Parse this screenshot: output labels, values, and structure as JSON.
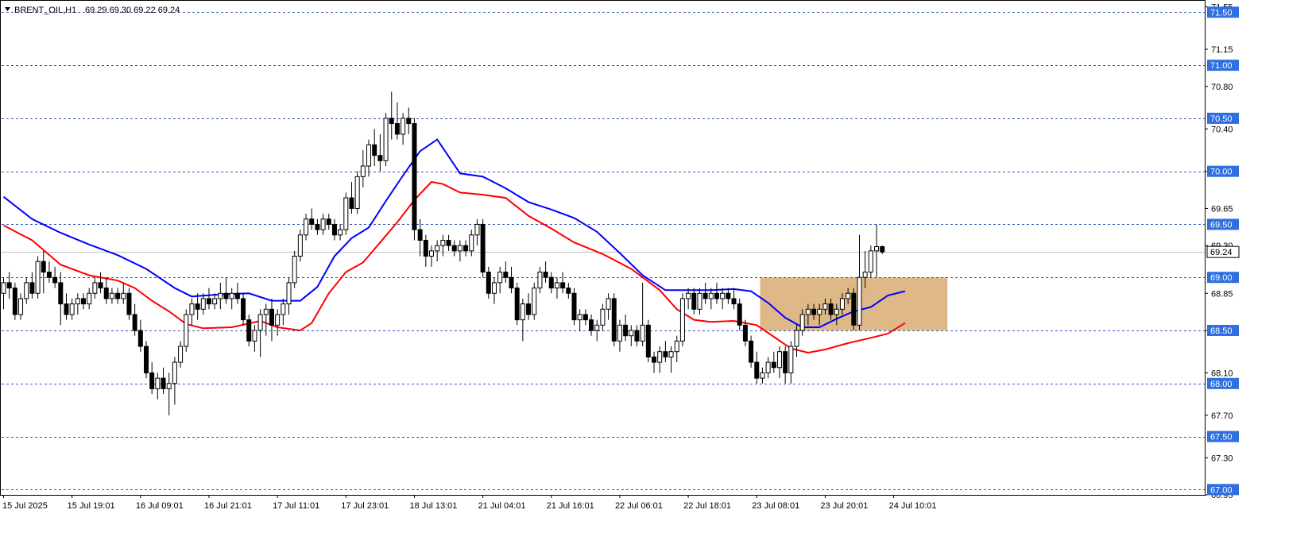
{
  "header": {
    "symbol_label": "BRENT_OIL,H1",
    "ohlc_label": "69.29 69.30 69.22 69.24"
  },
  "chart_data": {
    "type": "candlestick",
    "symbol": "BRENT_OIL",
    "timeframe": "H1",
    "ylim": [
      66.95,
      71.6
    ],
    "y_ticks": [
      "71.55",
      "71.15",
      "70.80",
      "70.40",
      "70.00",
      "69.65",
      "69.30",
      "68.85",
      "68.50",
      "68.10",
      "67.70",
      "67.30",
      "66.95"
    ],
    "x_ticks": [
      "15 Jul 2025",
      "15 Jul 19:01",
      "16 Jul 09:01",
      "16 Jul 21:01",
      "17 Jul 11:01",
      "17 Jul 23:01",
      "18 Jul 13:01",
      "21 Jul 04:01",
      "21 Jul 16:01",
      "22 Jul 06:01",
      "22 Jul 18:01",
      "23 Jul 08:01",
      "23 Jul 20:01",
      "24 Jul 10:01"
    ],
    "x_tick_bar_index": [
      0,
      12,
      24,
      36,
      48,
      60,
      72,
      84,
      96,
      108,
      120,
      132,
      144,
      156
    ],
    "level_lines": [
      {
        "price": 71.5,
        "label": "71.50"
      },
      {
        "price": 71.0,
        "label": "71.00"
      },
      {
        "price": 70.5,
        "label": "70.50"
      },
      {
        "price": 70.0,
        "label": "70.00"
      },
      {
        "price": 69.5,
        "label": "69.50"
      },
      {
        "price": 69.0,
        "label": "69.00"
      },
      {
        "price": 68.5,
        "label": "68.50"
      },
      {
        "price": 68.0,
        "label": "68.00"
      },
      {
        "price": 67.5,
        "label": "67.50"
      },
      {
        "price": 67.0,
        "label": "67.00"
      }
    ],
    "current_price": {
      "price": 69.24,
      "label": "69.24"
    },
    "zone": {
      "from_bar": 133,
      "to_bar": 165,
      "low": 68.5,
      "high": 69.0,
      "color": "#deb887"
    },
    "ma_fast_color": "#ff0000",
    "ma_slow_color": "#0000ff",
    "ma_fast": [
      [
        0,
        69.49
      ],
      [
        5,
        69.35
      ],
      [
        10,
        69.12
      ],
      [
        15,
        69.02
      ],
      [
        20,
        68.97
      ],
      [
        23,
        68.9
      ],
      [
        26,
        68.78
      ],
      [
        29,
        68.68
      ],
      [
        32,
        68.56
      ],
      [
        35,
        68.52
      ],
      [
        40,
        68.53
      ],
      [
        45,
        68.59
      ],
      [
        48,
        68.53
      ],
      [
        52,
        68.5
      ],
      [
        54,
        68.57
      ],
      [
        57,
        68.85
      ],
      [
        60,
        69.05
      ],
      [
        63,
        69.14
      ],
      [
        66,
        69.33
      ],
      [
        69,
        69.52
      ],
      [
        72,
        69.73
      ],
      [
        75,
        69.9
      ],
      [
        77,
        69.88
      ],
      [
        80,
        69.8
      ],
      [
        84,
        69.78
      ],
      [
        88,
        69.75
      ],
      [
        92,
        69.58
      ],
      [
        96,
        69.46
      ],
      [
        100,
        69.33
      ],
      [
        105,
        69.22
      ],
      [
        110,
        69.08
      ],
      [
        115,
        68.88
      ],
      [
        118,
        68.7
      ],
      [
        121,
        68.6
      ],
      [
        124,
        68.58
      ],
      [
        128,
        68.59
      ],
      [
        132,
        68.55
      ],
      [
        135,
        68.44
      ],
      [
        138,
        68.33
      ],
      [
        141,
        68.29
      ],
      [
        144,
        68.32
      ],
      [
        148,
        68.38
      ],
      [
        152,
        68.43
      ],
      [
        155,
        68.47
      ],
      [
        158,
        68.57
      ]
    ],
    "ma_slow": [
      [
        0,
        69.76
      ],
      [
        5,
        69.55
      ],
      [
        10,
        69.42
      ],
      [
        15,
        69.31
      ],
      [
        20,
        69.21
      ],
      [
        25,
        69.08
      ],
      [
        30,
        68.9
      ],
      [
        33,
        68.82
      ],
      [
        38,
        68.84
      ],
      [
        43,
        68.85
      ],
      [
        47,
        68.78
      ],
      [
        52,
        68.78
      ],
      [
        55,
        68.91
      ],
      [
        58,
        69.2
      ],
      [
        61,
        69.37
      ],
      [
        64,
        69.47
      ],
      [
        67,
        69.72
      ],
      [
        70,
        69.96
      ],
      [
        73,
        70.19
      ],
      [
        76,
        70.3
      ],
      [
        80,
        69.98
      ],
      [
        84,
        69.95
      ],
      [
        88,
        69.84
      ],
      [
        92,
        69.71
      ],
      [
        96,
        69.64
      ],
      [
        100,
        69.56
      ],
      [
        104,
        69.43
      ],
      [
        108,
        69.23
      ],
      [
        112,
        69.02
      ],
      [
        116,
        68.88
      ],
      [
        120,
        68.88
      ],
      [
        124,
        68.88
      ],
      [
        128,
        68.89
      ],
      [
        131,
        68.87
      ],
      [
        134,
        68.76
      ],
      [
        137,
        68.62
      ],
      [
        140,
        68.53
      ],
      [
        143,
        68.53
      ],
      [
        146,
        68.61
      ],
      [
        149,
        68.68
      ],
      [
        152,
        68.72
      ],
      [
        155,
        68.83
      ],
      [
        158,
        68.87
      ]
    ],
    "candles": [
      [
        68.85,
        69.0,
        68.7,
        68.95
      ],
      [
        68.95,
        69.05,
        68.8,
        68.9
      ],
      [
        68.9,
        68.95,
        68.6,
        68.65
      ],
      [
        68.65,
        68.85,
        68.6,
        68.8
      ],
      [
        68.8,
        69.0,
        68.75,
        68.95
      ],
      [
        68.95,
        69.05,
        68.8,
        68.85
      ],
      [
        68.85,
        69.2,
        68.8,
        69.15
      ],
      [
        69.15,
        69.25,
        68.85,
        69.05
      ],
      [
        69.05,
        69.15,
        68.95,
        69.0
      ],
      [
        69.0,
        69.1,
        68.9,
        68.95
      ],
      [
        68.95,
        69.05,
        68.55,
        68.75
      ],
      [
        68.75,
        68.85,
        68.6,
        68.65
      ],
      [
        68.65,
        68.8,
        68.6,
        68.75
      ],
      [
        68.75,
        68.85,
        68.65,
        68.8
      ],
      [
        68.8,
        68.85,
        68.7,
        68.75
      ],
      [
        68.75,
        68.9,
        68.7,
        68.85
      ],
      [
        68.85,
        69.0,
        68.8,
        68.95
      ],
      [
        68.95,
        69.05,
        68.85,
        68.9
      ],
      [
        68.9,
        69.0,
        68.75,
        68.8
      ],
      [
        68.8,
        68.9,
        68.75,
        68.85
      ],
      [
        68.85,
        68.9,
        68.75,
        68.8
      ],
      [
        68.8,
        68.95,
        68.75,
        68.85
      ],
      [
        68.85,
        68.9,
        68.6,
        68.65
      ],
      [
        68.65,
        68.75,
        68.45,
        68.5
      ],
      [
        68.5,
        68.6,
        68.3,
        68.35
      ],
      [
        68.35,
        68.4,
        68.05,
        68.1
      ],
      [
        68.1,
        68.2,
        67.9,
        67.95
      ],
      [
        67.95,
        68.1,
        67.85,
        68.05
      ],
      [
        68.05,
        68.15,
        67.9,
        67.95
      ],
      [
        67.95,
        68.1,
        67.7,
        68.0
      ],
      [
        68.0,
        68.25,
        67.8,
        68.2
      ],
      [
        68.2,
        68.4,
        68.15,
        68.35
      ],
      [
        68.35,
        68.7,
        68.3,
        68.65
      ],
      [
        68.65,
        68.8,
        68.55,
        68.75
      ],
      [
        68.75,
        68.85,
        68.6,
        68.7
      ],
      [
        68.7,
        68.85,
        68.65,
        68.8
      ],
      [
        68.8,
        68.9,
        68.7,
        68.75
      ],
      [
        68.75,
        68.85,
        68.7,
        68.8
      ],
      [
        68.8,
        68.95,
        68.7,
        68.85
      ],
      [
        68.85,
        69.0,
        68.75,
        68.8
      ],
      [
        68.8,
        68.9,
        68.7,
        68.85
      ],
      [
        68.85,
        68.95,
        68.75,
        68.8
      ],
      [
        68.8,
        68.85,
        68.55,
        68.6
      ],
      [
        68.6,
        68.65,
        68.35,
        68.4
      ],
      [
        68.4,
        68.55,
        68.3,
        68.5
      ],
      [
        68.5,
        68.7,
        68.25,
        68.65
      ],
      [
        68.65,
        68.75,
        68.45,
        68.7
      ],
      [
        68.7,
        68.8,
        68.4,
        68.55
      ],
      [
        68.55,
        68.7,
        68.45,
        68.65
      ],
      [
        68.65,
        68.8,
        68.55,
        68.75
      ],
      [
        68.75,
        69.0,
        68.65,
        68.95
      ],
      [
        68.95,
        69.25,
        68.9,
        69.2
      ],
      [
        69.2,
        69.45,
        69.15,
        69.4
      ],
      [
        69.4,
        69.6,
        69.35,
        69.55
      ],
      [
        69.55,
        69.65,
        69.45,
        69.5
      ],
      [
        69.5,
        69.55,
        69.4,
        69.45
      ],
      [
        69.45,
        69.6,
        69.4,
        69.55
      ],
      [
        69.55,
        69.6,
        69.45,
        69.5
      ],
      [
        69.5,
        69.55,
        69.35,
        69.4
      ],
      [
        69.4,
        69.5,
        69.35,
        69.45
      ],
      [
        69.45,
        69.8,
        69.4,
        69.75
      ],
      [
        69.75,
        69.9,
        69.6,
        69.65
      ],
      [
        69.65,
        70.0,
        69.6,
        69.95
      ],
      [
        69.95,
        70.2,
        69.85,
        70.05
      ],
      [
        70.05,
        70.3,
        69.95,
        70.25
      ],
      [
        70.25,
        70.4,
        70.05,
        70.15
      ],
      [
        70.15,
        70.35,
        70.0,
        70.1
      ],
      [
        70.1,
        70.55,
        70.05,
        70.5
      ],
      [
        70.5,
        70.75,
        70.3,
        70.45
      ],
      [
        70.45,
        70.65,
        70.3,
        70.35
      ],
      [
        70.35,
        70.55,
        70.25,
        70.5
      ],
      [
        70.5,
        70.6,
        70.35,
        70.45
      ],
      [
        70.45,
        70.5,
        69.35,
        69.45
      ],
      [
        69.45,
        69.55,
        69.2,
        69.35
      ],
      [
        69.35,
        69.4,
        69.1,
        69.2
      ],
      [
        69.2,
        69.3,
        69.1,
        69.25
      ],
      [
        69.25,
        69.35,
        69.15,
        69.3
      ],
      [
        69.3,
        69.4,
        69.2,
        69.35
      ],
      [
        69.35,
        69.4,
        69.25,
        69.3
      ],
      [
        69.3,
        69.35,
        69.2,
        69.25
      ],
      [
        69.25,
        69.35,
        69.15,
        69.3
      ],
      [
        69.3,
        69.35,
        69.2,
        69.25
      ],
      [
        69.25,
        69.45,
        69.2,
        69.4
      ],
      [
        69.4,
        69.55,
        69.3,
        69.5
      ],
      [
        69.5,
        69.55,
        69.0,
        69.05
      ],
      [
        69.05,
        69.1,
        68.8,
        68.85
      ],
      [
        68.85,
        69.0,
        68.75,
        68.95
      ],
      [
        68.95,
        69.1,
        68.85,
        69.05
      ],
      [
        69.05,
        69.15,
        68.95,
        69.0
      ],
      [
        69.0,
        69.1,
        68.85,
        68.9
      ],
      [
        68.9,
        68.95,
        68.55,
        68.6
      ],
      [
        68.6,
        68.8,
        68.4,
        68.75
      ],
      [
        68.75,
        68.85,
        68.6,
        68.65
      ],
      [
        68.65,
        68.95,
        68.6,
        68.9
      ],
      [
        68.9,
        69.1,
        68.85,
        69.05
      ],
      [
        69.05,
        69.15,
        68.95,
        69.0
      ],
      [
        69.0,
        69.05,
        68.85,
        68.9
      ],
      [
        68.9,
        69.0,
        68.8,
        68.95
      ],
      [
        68.95,
        69.05,
        68.85,
        68.9
      ],
      [
        68.9,
        68.95,
        68.8,
        68.85
      ],
      [
        68.85,
        68.9,
        68.55,
        68.6
      ],
      [
        68.6,
        68.7,
        68.5,
        68.65
      ],
      [
        68.65,
        68.7,
        68.55,
        68.6
      ],
      [
        68.6,
        68.65,
        68.45,
        68.5
      ],
      [
        68.5,
        68.6,
        68.4,
        68.55
      ],
      [
        68.55,
        68.75,
        68.5,
        68.7
      ],
      [
        68.7,
        68.85,
        68.6,
        68.8
      ],
      [
        68.8,
        68.85,
        68.35,
        68.4
      ],
      [
        68.4,
        68.6,
        68.3,
        68.55
      ],
      [
        68.55,
        68.65,
        68.4,
        68.45
      ],
      [
        68.45,
        68.55,
        68.35,
        68.5
      ],
      [
        68.5,
        68.55,
        68.35,
        68.4
      ],
      [
        68.4,
        68.95,
        68.35,
        68.55
      ],
      [
        68.55,
        68.6,
        68.2,
        68.25
      ],
      [
        68.25,
        68.3,
        68.1,
        68.2
      ],
      [
        68.2,
        68.35,
        68.1,
        68.3
      ],
      [
        68.3,
        68.4,
        68.2,
        68.25
      ],
      [
        68.25,
        68.35,
        68.1,
        68.3
      ],
      [
        68.3,
        68.45,
        68.2,
        68.4
      ],
      [
        68.4,
        68.85,
        68.35,
        68.8
      ],
      [
        68.8,
        68.9,
        68.7,
        68.85
      ],
      [
        68.85,
        68.9,
        68.65,
        68.7
      ],
      [
        68.7,
        68.9,
        68.65,
        68.85
      ],
      [
        68.85,
        68.95,
        68.75,
        68.8
      ],
      [
        68.8,
        68.9,
        68.7,
        68.85
      ],
      [
        68.85,
        68.95,
        68.75,
        68.8
      ],
      [
        68.8,
        68.9,
        68.7,
        68.85
      ],
      [
        68.85,
        68.9,
        68.75,
        68.8
      ],
      [
        68.8,
        68.9,
        68.7,
        68.75
      ],
      [
        68.75,
        68.8,
        68.5,
        68.55
      ],
      [
        68.55,
        68.6,
        68.35,
        68.4
      ],
      [
        68.4,
        68.45,
        68.15,
        68.2
      ],
      [
        68.2,
        68.3,
        68.0,
        68.05
      ],
      [
        68.05,
        68.15,
        68.0,
        68.1
      ],
      [
        68.1,
        68.25,
        68.05,
        68.2
      ],
      [
        68.2,
        68.3,
        68.1,
        68.15
      ],
      [
        68.15,
        68.35,
        68.05,
        68.3
      ],
      [
        68.3,
        68.35,
        68.0,
        68.1
      ],
      [
        68.1,
        68.4,
        68.0,
        68.35
      ],
      [
        68.35,
        68.55,
        68.25,
        68.5
      ],
      [
        68.5,
        68.7,
        68.45,
        68.65
      ],
      [
        68.65,
        68.75,
        68.55,
        68.7
      ],
      [
        68.7,
        68.75,
        68.6,
        68.65
      ],
      [
        68.65,
        68.75,
        68.55,
        68.7
      ],
      [
        68.7,
        68.8,
        68.65,
        68.75
      ],
      [
        68.75,
        68.8,
        68.6,
        68.65
      ],
      [
        68.65,
        68.75,
        68.55,
        68.7
      ],
      [
        68.7,
        68.85,
        68.65,
        68.8
      ],
      [
        68.8,
        68.9,
        68.75,
        68.85
      ],
      [
        68.85,
        68.9,
        68.5,
        68.55
      ],
      [
        68.55,
        69.4,
        68.5,
        69.0
      ],
      [
        69.0,
        69.25,
        68.9,
        69.05
      ],
      [
        69.05,
        69.3,
        69.0,
        69.25
      ],
      [
        69.25,
        69.5,
        69.0,
        69.29
      ],
      [
        69.29,
        69.3,
        69.22,
        69.24
      ]
    ]
  }
}
